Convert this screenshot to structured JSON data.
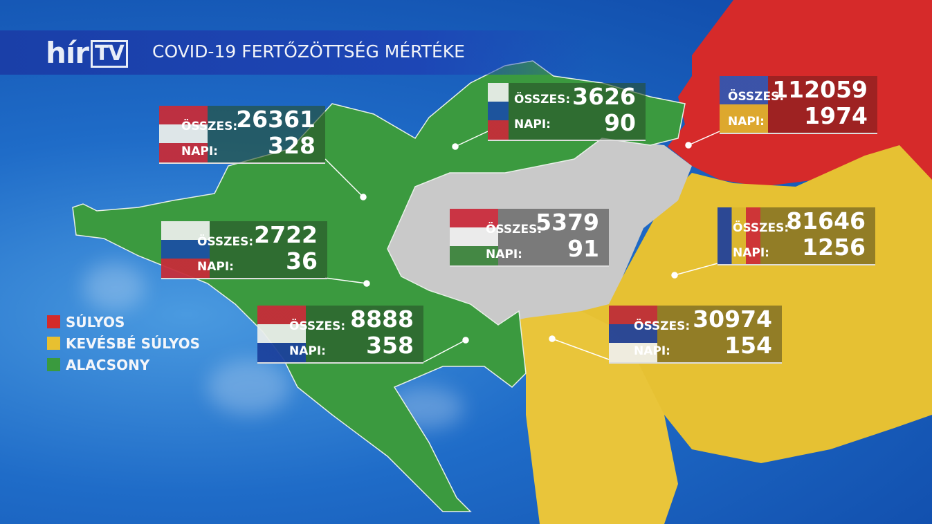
{
  "header": {
    "logo": "hír",
    "logo_tv": "TV",
    "title": "COVID-19 FERTŐZÖTTSÉG MÉRTÉKE"
  },
  "legend": [
    {
      "label": "SÚLYOS",
      "color": "#d42a2a"
    },
    {
      "label": "KEVÉSBÉ SÚLYOS",
      "color": "#e8c030"
    },
    {
      "label": "ALACSONY",
      "color": "#3a9a3e"
    }
  ],
  "labels": {
    "total": "ÖSSZES:",
    "daily": "NAPI:"
  },
  "countries": {
    "austria": {
      "total": "26361",
      "daily": "328",
      "flag": "austria-flag",
      "level": "alacsony"
    },
    "slovakia": {
      "total": "3626",
      "daily": "90",
      "flag": "slovakia-flag",
      "level": "alacsony"
    },
    "ukraine": {
      "total": "112059",
      "daily": "1974",
      "flag": "ukraine-flag",
      "level": "súlyos"
    },
    "hungary": {
      "total": "5379",
      "daily": "91",
      "flag": "hungary-flag"
    },
    "slovenia": {
      "total": "2722",
      "daily": "36",
      "flag": "slovenia-flag",
      "level": "alacsony"
    },
    "romania": {
      "total": "81646",
      "daily": "1256",
      "flag": "romania-flag",
      "level": "kevésbé súlyos"
    },
    "croatia": {
      "total": "8888",
      "daily": "358",
      "flag": "croatia-flag",
      "level": "alacsony"
    },
    "serbia": {
      "total": "30974",
      "daily": "154",
      "flag": "serbia-flag",
      "level": "kevésbé súlyos"
    }
  }
}
